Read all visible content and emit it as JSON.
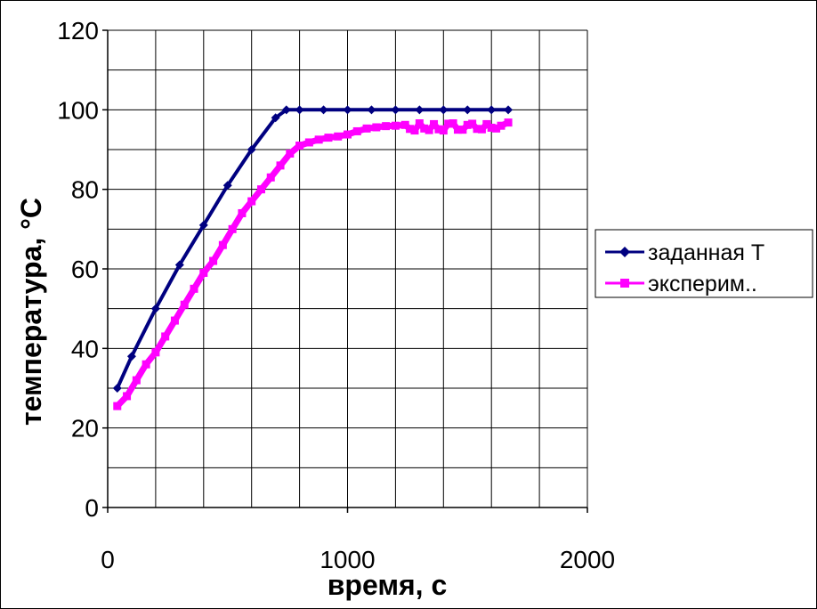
{
  "chart_data": {
    "type": "line",
    "title": "",
    "xlabel": "время, с",
    "ylabel": "температура, °С",
    "xlim": [
      0,
      2000
    ],
    "ylim": [
      0,
      120
    ],
    "xticks": [
      0,
      1000,
      2000
    ],
    "yticks": [
      0,
      20,
      40,
      60,
      80,
      100,
      120
    ],
    "x_minor_step": 200,
    "y_minor_step": 10,
    "grid": true,
    "legend_position": "right",
    "series": [
      {
        "name": "заданная Т",
        "color": "#000080",
        "marker": "diamond",
        "x": [
          40,
          100,
          200,
          300,
          400,
          500,
          600,
          700,
          745,
          800,
          900,
          1000,
          1100,
          1200,
          1300,
          1400,
          1500,
          1600,
          1670
        ],
        "y": [
          30,
          38,
          50,
          61,
          71,
          81,
          90,
          98,
          100,
          100,
          100,
          100,
          100,
          100,
          100,
          100,
          100,
          100,
          100
        ]
      },
      {
        "name": "эксперим..",
        "color": "#ff00ff",
        "marker": "square",
        "x": [
          40,
          80,
          120,
          160,
          200,
          240,
          280,
          320,
          360,
          400,
          440,
          480,
          520,
          560,
          600,
          640,
          680,
          720,
          760,
          800,
          840,
          880,
          920,
          960,
          1000,
          1040,
          1080,
          1120,
          1160,
          1200,
          1240,
          1260,
          1280,
          1300,
          1320,
          1340,
          1360,
          1380,
          1400,
          1420,
          1440,
          1460,
          1480,
          1500,
          1520,
          1540,
          1560,
          1580,
          1600,
          1620,
          1640,
          1670
        ],
        "y": [
          25.5,
          28,
          32,
          36,
          39,
          43,
          47,
          51,
          55,
          59,
          62,
          66,
          70,
          74,
          77,
          80,
          83,
          86,
          89,
          91,
          91.8,
          92.5,
          93,
          93.3,
          93.8,
          94.6,
          95.3,
          95.6,
          95.9,
          96,
          96.2,
          95.2,
          94.8,
          96.6,
          95.3,
          94.9,
          96.4,
          95.1,
          94.8,
          96.5,
          96.6,
          95,
          95,
          96.2,
          96.5,
          95.2,
          95.1,
          96.4,
          95.5,
          95.3,
          96,
          96.8
        ]
      }
    ]
  }
}
